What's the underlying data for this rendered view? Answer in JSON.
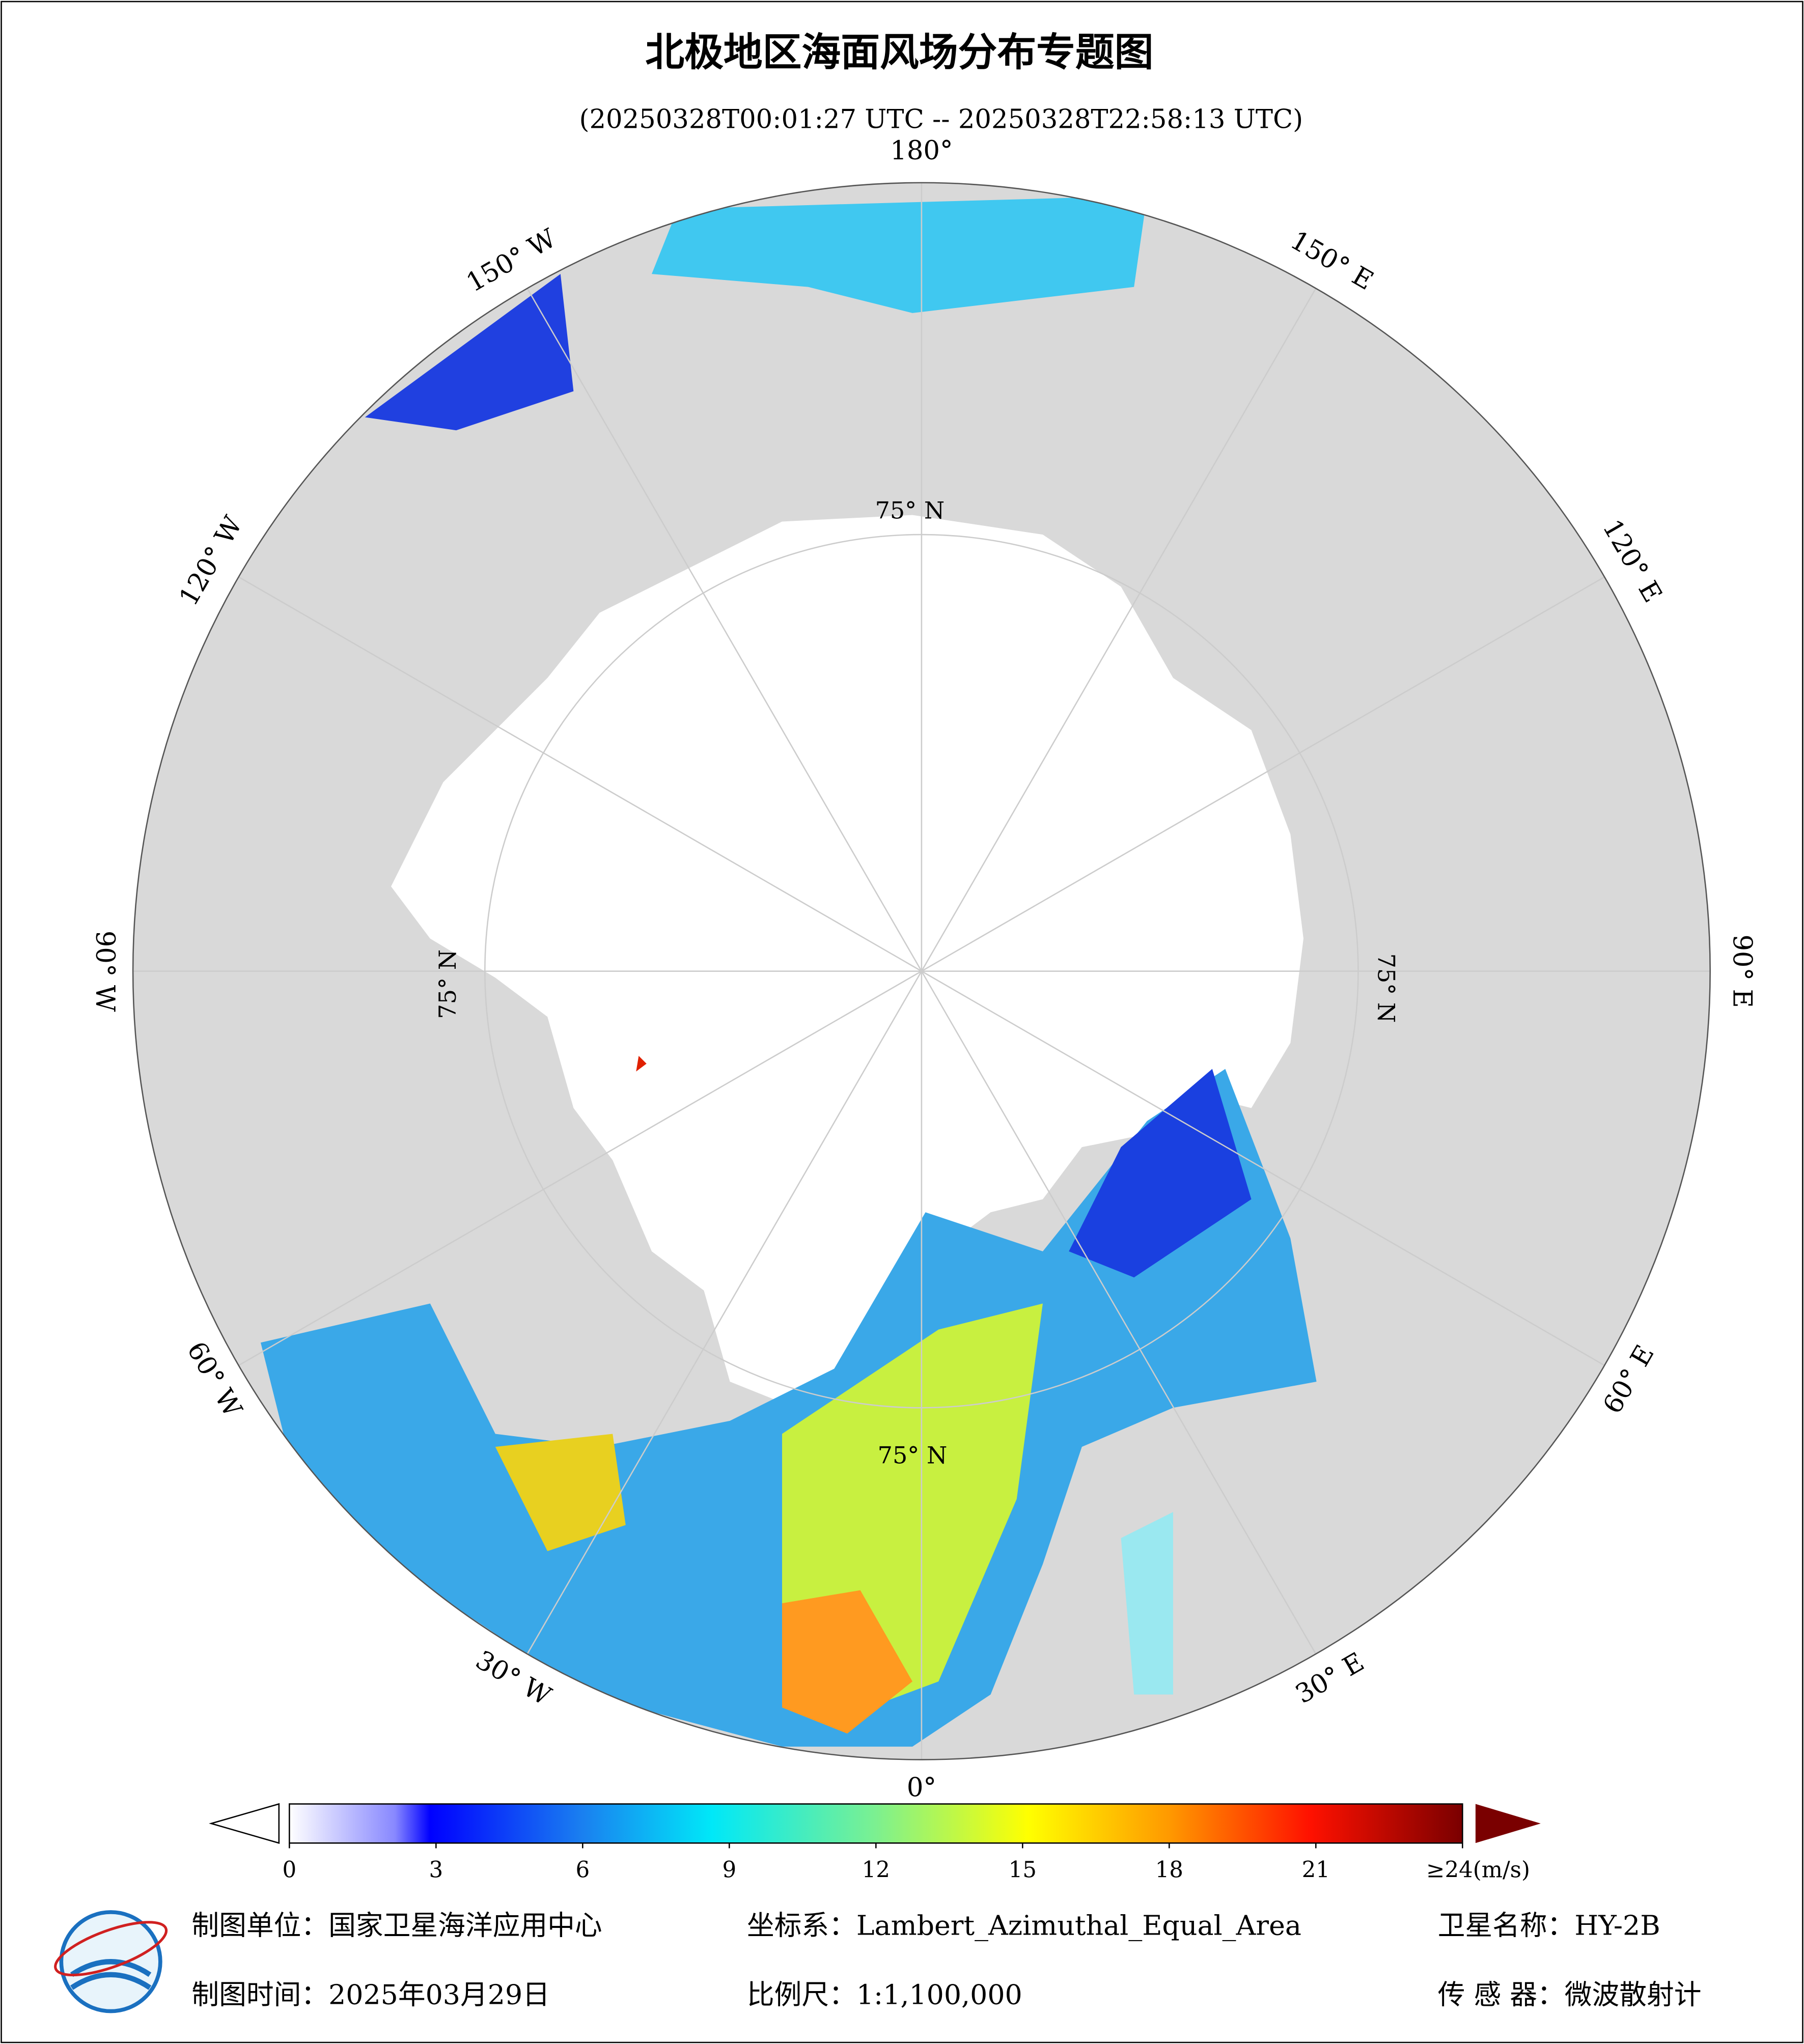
{
  "header": {
    "title": "北极地区海面风场分布专题图",
    "subtitle": "(20250328T00:01:27 UTC -- 20250328T22:58:13 UTC)"
  },
  "map": {
    "lon_labels": [
      "0°",
      "30° E",
      "60° E",
      "90° E",
      "120° E",
      "150° E",
      "180°",
      "150° W",
      "120° W",
      "90° W",
      "60° W",
      "30° W"
    ],
    "lat_labels": [
      "75° N",
      "75° N",
      "75° N",
      "75° N"
    ]
  },
  "colorbar": {
    "ticks": [
      0,
      3,
      6,
      9,
      12,
      15,
      18,
      21,
      {
        "value": 24,
        "label": "≥24(m/s)"
      }
    ]
  },
  "footer": {
    "unit": "制图单位：国家卫星海洋应用中心",
    "projection": "坐标系：Lambert_Azimuthal_Equal_Area",
    "satellite": "卫星名称：HY-2B",
    "date": "制图时间：2025年03月29日",
    "scale": "比例尺：1:1,100,000",
    "sensor": "传 感 器：微波散射计"
  }
}
